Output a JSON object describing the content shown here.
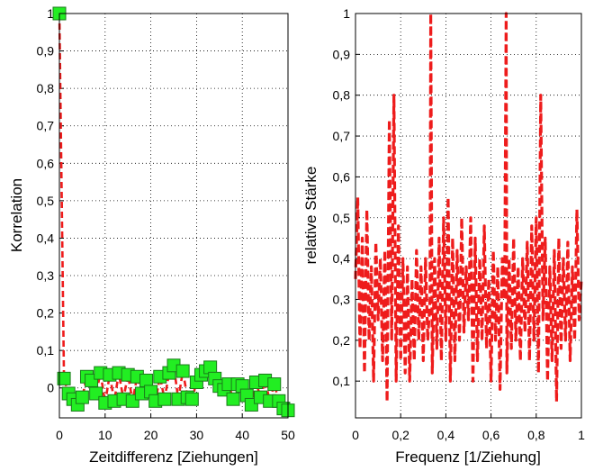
{
  "colors": {
    "line": "#ee1c1c",
    "marker": "#22ee22",
    "marker_edge": "#1a7a1a"
  },
  "chart_data": [
    {
      "type": "line",
      "xlabel": "Zeitdifferenz [Ziehungen]",
      "ylabel": "Korrelation",
      "xlim": [
        0,
        50
      ],
      "ylim": [
        -0.08,
        1
      ],
      "grid": true,
      "x_ticks": [
        "0",
        "10",
        "20",
        "30",
        "40",
        "50"
      ],
      "y_ticks": [
        "0",
        "0,1",
        "0,2",
        "0,3",
        "0,4",
        "0,5",
        "0,6",
        "0,7",
        "0,8",
        "0,9",
        "1"
      ],
      "series": [
        {
          "style": "dashed line with square markers",
          "x": [
            0,
            1,
            2,
            3,
            4,
            5,
            6,
            7,
            8,
            9,
            10,
            11,
            12,
            13,
            14,
            15,
            16,
            17,
            18,
            19,
            20,
            21,
            22,
            23,
            24,
            25,
            26,
            27,
            28,
            29,
            30,
            31,
            32,
            33,
            34,
            35,
            36,
            37,
            38,
            39,
            40,
            41,
            42,
            43,
            44,
            45,
            46,
            47,
            48,
            49,
            50
          ],
          "y": [
            1.0,
            0.025,
            -0.015,
            -0.03,
            -0.045,
            -0.025,
            0.03,
            0.02,
            -0.015,
            0.04,
            -0.04,
            0.035,
            -0.035,
            0.04,
            -0.03,
            0.035,
            -0.035,
            0.03,
            -0.015,
            0.02,
            -0.01,
            -0.035,
            0.03,
            -0.03,
            0.04,
            0.06,
            -0.03,
            0.045,
            -0.025,
            -0.03,
            0.015,
            0.035,
            0.045,
            0.055,
            0.025,
            0.005,
            -0.005,
            0.01,
            -0.03,
            0.01,
            0.005,
            -0.02,
            -0.045,
            0.015,
            -0.025,
            0.02,
            -0.035,
            0.01,
            -0.035,
            -0.055,
            -0.06
          ]
        }
      ]
    },
    {
      "type": "line",
      "xlabel": "Frequenz [1/Ziehung]",
      "ylabel": "relative Stärke",
      "xlim": [
        0,
        1
      ],
      "ylim": [
        0.01,
        1
      ],
      "grid": true,
      "x_ticks": [
        "0",
        "0,2",
        "0,4",
        "0,6",
        "0,8",
        "1"
      ],
      "y_ticks": [
        "0,1",
        "0,2",
        "0,3",
        "0,4",
        "0,5",
        "0,6",
        "0,7",
        "0,8",
        "0,9",
        "1"
      ],
      "series": [
        {
          "style": "dashed line",
          "x": [
            0.0,
            0.01,
            0.02,
            0.03,
            0.04,
            0.05,
            0.06,
            0.07,
            0.08,
            0.09,
            0.1,
            0.11,
            0.12,
            0.13,
            0.14,
            0.15,
            0.16,
            0.17,
            0.18,
            0.19,
            0.2,
            0.21,
            0.22,
            0.23,
            0.24,
            0.25,
            0.26,
            0.27,
            0.28,
            0.29,
            0.3,
            0.31,
            0.32,
            0.33,
            0.333,
            0.34,
            0.35,
            0.36,
            0.37,
            0.38,
            0.39,
            0.4,
            0.41,
            0.42,
            0.43,
            0.44,
            0.45,
            0.46,
            0.47,
            0.48,
            0.49,
            0.5,
            0.51,
            0.52,
            0.53,
            0.54,
            0.55,
            0.56,
            0.57,
            0.58,
            0.59,
            0.6,
            0.61,
            0.62,
            0.63,
            0.64,
            0.65,
            0.66,
            0.667,
            0.67,
            0.68,
            0.69,
            0.7,
            0.71,
            0.72,
            0.73,
            0.74,
            0.75,
            0.76,
            0.77,
            0.78,
            0.79,
            0.8,
            0.81,
            0.82,
            0.83,
            0.84,
            0.85,
            0.86,
            0.87,
            0.88,
            0.89,
            0.9,
            0.91,
            0.92,
            0.93,
            0.94,
            0.95,
            0.96,
            0.97,
            0.98,
            0.99,
            1.0
          ],
          "y": [
            0.35,
            0.55,
            0.18,
            0.45,
            0.12,
            0.52,
            0.2,
            0.38,
            0.1,
            0.44,
            0.25,
            0.4,
            0.15,
            0.42,
            0.05,
            0.74,
            0.2,
            0.8,
            0.1,
            0.48,
            0.15,
            0.4,
            0.12,
            0.38,
            0.1,
            0.35,
            0.15,
            0.42,
            0.2,
            0.38,
            0.15,
            0.4,
            0.2,
            0.3,
            1.0,
            0.12,
            0.4,
            0.18,
            0.45,
            0.15,
            0.5,
            0.2,
            0.55,
            0.1,
            0.45,
            0.15,
            0.42,
            0.2,
            0.5,
            0.22,
            0.38,
            0.25,
            0.5,
            0.1,
            0.45,
            0.15,
            0.4,
            0.2,
            0.48,
            0.18,
            0.35,
            0.1,
            0.42,
            0.2,
            0.38,
            0.08,
            0.4,
            0.3,
            1.0,
            0.12,
            0.4,
            0.18,
            0.45,
            0.2,
            0.38,
            0.15,
            0.4,
            0.22,
            0.44,
            0.15,
            0.48,
            0.2,
            0.5,
            0.12,
            0.8,
            0.25,
            0.45,
            0.1,
            0.38,
            0.15,
            0.42,
            0.05,
            0.45,
            0.18,
            0.4,
            0.2,
            0.44,
            0.15,
            0.38,
            0.2,
            0.52,
            0.25,
            0.35
          ]
        }
      ]
    }
  ]
}
